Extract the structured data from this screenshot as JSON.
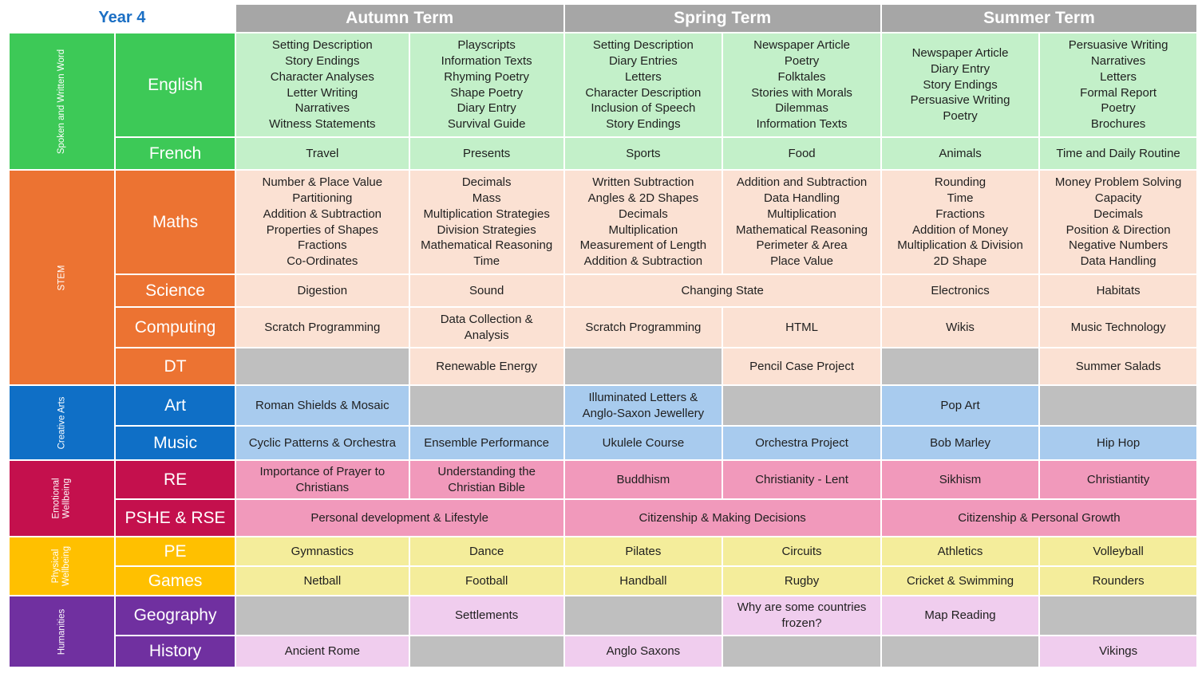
{
  "header": {
    "year": "Year 4",
    "terms": [
      "Autumn Term",
      "Spring Term",
      "Summer Term"
    ]
  },
  "groups": [
    {
      "label": "Spoken and Written Word",
      "label_lines": [
        "Spoken and Written Word"
      ],
      "color": "#3dc957",
      "cell_color": "#c3f0c9",
      "subjects": [
        {
          "name": "English",
          "cells": [
            {
              "lines": [
                "Setting Description",
                "Story Endings",
                "Character Analyses",
                "Letter Writing",
                "Narratives",
                "Witness Statements"
              ]
            },
            {
              "lines": [
                "Playscripts",
                "Information Texts",
                "Rhyming Poetry",
                "Shape Poetry",
                "Diary Entry",
                "Survival Guide"
              ]
            },
            {
              "lines": [
                "Setting Description",
                "Diary Entries",
                "Letters",
                "Character Description",
                "Inclusion of Speech",
                "Story Endings"
              ]
            },
            {
              "lines": [
                "Newspaper Article",
                "Poetry",
                "Folktales",
                "Stories with Morals",
                "Dilemmas",
                "Information Texts"
              ]
            },
            {
              "lines": [
                "Newspaper Article",
                "Diary Entry",
                "Story Endings",
                "Persuasive Writing",
                "Poetry"
              ]
            },
            {
              "lines": [
                "Persuasive Writing",
                "Narratives",
                "Letters",
                "Formal Report",
                "Poetry",
                "Brochures"
              ]
            }
          ]
        },
        {
          "name": "French",
          "cells": [
            {
              "lines": [
                "Travel"
              ]
            },
            {
              "lines": [
                "Presents"
              ]
            },
            {
              "lines": [
                "Sports"
              ]
            },
            {
              "lines": [
                "Food"
              ]
            },
            {
              "lines": [
                "Animals"
              ]
            },
            {
              "lines": [
                "Time and Daily Routine"
              ]
            }
          ]
        }
      ]
    },
    {
      "label": "STEM",
      "label_lines": [
        "STEM"
      ],
      "color": "#ec7332",
      "cell_color": "#fbe1d3",
      "subjects": [
        {
          "name": "Maths",
          "cells": [
            {
              "lines": [
                "Number & Place Value",
                "Partitioning",
                "Addition & Subtraction",
                "Properties of Shapes",
                "Fractions",
                "Co-Ordinates"
              ]
            },
            {
              "lines": [
                "Decimals",
                "Mass",
                "Multiplication Strategies",
                "Division Strategies",
                "Mathematical Reasoning",
                "Time"
              ]
            },
            {
              "lines": [
                "Written Subtraction",
                "Angles & 2D Shapes",
                "Decimals",
                "Multiplication",
                "Measurement of Length",
                "Addition & Subtraction"
              ]
            },
            {
              "lines": [
                "Addition and Subtraction",
                "Data Handling",
                "Multiplication",
                "Mathematical Reasoning",
                "Perimeter & Area",
                "Place Value"
              ]
            },
            {
              "lines": [
                "Rounding",
                "Time",
                "Fractions",
                "Addition of Money",
                "Multiplication & Division",
                "2D Shape"
              ]
            },
            {
              "lines": [
                "Money Problem Solving",
                "Capacity",
                "Decimals",
                "Position & Direction",
                "Negative Numbers",
                "Data Handling"
              ]
            }
          ]
        },
        {
          "name": "Science",
          "cells": [
            {
              "lines": [
                "Digestion"
              ]
            },
            {
              "lines": [
                "Sound"
              ]
            },
            {
              "lines": [
                "Changing State"
              ],
              "span": 2
            },
            {
              "lines": [
                "Electronics"
              ]
            },
            {
              "lines": [
                "Habitats"
              ]
            }
          ]
        },
        {
          "name": "Computing",
          "cells": [
            {
              "lines": [
                "Scratch Programming"
              ]
            },
            {
              "lines": [
                "Data Collection &",
                "Analysis"
              ]
            },
            {
              "lines": [
                "Scratch Programming"
              ]
            },
            {
              "lines": [
                "HTML"
              ]
            },
            {
              "lines": [
                "Wikis"
              ]
            },
            {
              "lines": [
                "Music Technology"
              ]
            }
          ]
        },
        {
          "name": "DT",
          "cells": [
            {
              "lines": [],
              "empty": true
            },
            {
              "lines": [
                "Renewable Energy"
              ]
            },
            {
              "lines": [],
              "empty": true
            },
            {
              "lines": [
                "Pencil Case Project"
              ]
            },
            {
              "lines": [],
              "empty": true
            },
            {
              "lines": [
                "Summer Salads"
              ]
            }
          ]
        }
      ]
    },
    {
      "label": "Creative Arts",
      "label_lines": [
        "Creative Arts"
      ],
      "color": "#0f6fc6",
      "cell_color": "#a8cbee",
      "subjects": [
        {
          "name": "Art",
          "cells": [
            {
              "lines": [
                "Roman Shields & Mosaic"
              ]
            },
            {
              "lines": [],
              "empty": true
            },
            {
              "lines": [
                "Illuminated Letters &",
                "Anglo-Saxon Jewellery"
              ]
            },
            {
              "lines": [],
              "empty": true
            },
            {
              "lines": [
                "Pop Art"
              ]
            },
            {
              "lines": [],
              "empty": true
            }
          ]
        },
        {
          "name": "Music",
          "cells": [
            {
              "lines": [
                "Cyclic Patterns & Orchestra"
              ]
            },
            {
              "lines": [
                "Ensemble Performance"
              ]
            },
            {
              "lines": [
                "Ukulele Course"
              ]
            },
            {
              "lines": [
                "Orchestra Project"
              ]
            },
            {
              "lines": [
                "Bob Marley"
              ]
            },
            {
              "lines": [
                "Hip Hop"
              ]
            }
          ]
        }
      ]
    },
    {
      "label": "Emotional Wellbeing",
      "label_lines": [
        "Emotional",
        "Wellbeing"
      ],
      "color": "#c4104d",
      "cell_color": "#f199bb",
      "subjects": [
        {
          "name": "RE",
          "cells": [
            {
              "lines": [
                "Importance of Prayer to",
                "Christians"
              ]
            },
            {
              "lines": [
                "Understanding the",
                "Christian Bible"
              ]
            },
            {
              "lines": [
                "Buddhism"
              ]
            },
            {
              "lines": [
                "Christianity - Lent"
              ]
            },
            {
              "lines": [
                "Sikhism"
              ]
            },
            {
              "lines": [
                "Christiantity"
              ]
            }
          ]
        },
        {
          "name": "PSHE & RSE",
          "cells": [
            {
              "lines": [
                "Personal development & Lifestyle"
              ],
              "span": 2
            },
            {
              "lines": [
                "Citizenship & Making Decisions"
              ],
              "span": 2
            },
            {
              "lines": [
                "Citizenship & Personal Growth"
              ],
              "span": 2
            }
          ]
        }
      ]
    },
    {
      "label": "Physical Wellbeing",
      "label_lines": [
        "Physical",
        "Wellbeing"
      ],
      "color": "#ffc000",
      "cell_color": "#f4ed9b",
      "subjects": [
        {
          "name": "PE",
          "cells": [
            {
              "lines": [
                "Gymnastics"
              ]
            },
            {
              "lines": [
                "Dance"
              ]
            },
            {
              "lines": [
                "Pilates"
              ]
            },
            {
              "lines": [
                "Circuits"
              ]
            },
            {
              "lines": [
                "Athletics"
              ]
            },
            {
              "lines": [
                "Volleyball"
              ]
            }
          ]
        },
        {
          "name": "Games",
          "cells": [
            {
              "lines": [
                "Netball"
              ]
            },
            {
              "lines": [
                "Football"
              ]
            },
            {
              "lines": [
                "Handball"
              ]
            },
            {
              "lines": [
                "Rugby"
              ]
            },
            {
              "lines": [
                "Cricket & Swimming"
              ]
            },
            {
              "lines": [
                "Rounders"
              ]
            }
          ]
        }
      ]
    },
    {
      "label": "Humanities",
      "label_lines": [
        "Humanities"
      ],
      "color": "#7030a0",
      "cell_color": "#f0cdee",
      "subjects": [
        {
          "name": "Geography",
          "cells": [
            {
              "lines": [],
              "empty": true
            },
            {
              "lines": [
                "Settlements"
              ]
            },
            {
              "lines": [],
              "empty": true
            },
            {
              "lines": [
                "Why are some countries",
                "frozen?"
              ]
            },
            {
              "lines": [
                "Map Reading"
              ]
            },
            {
              "lines": [],
              "empty": true
            }
          ]
        },
        {
          "name": "History",
          "cells": [
            {
              "lines": [
                "Ancient Rome"
              ]
            },
            {
              "lines": [],
              "empty": true
            },
            {
              "lines": [
                "Anglo Saxons"
              ]
            },
            {
              "lines": [],
              "empty": true
            },
            {
              "lines": [],
              "empty": true
            },
            {
              "lines": [
                "Vikings"
              ]
            }
          ]
        }
      ]
    }
  ]
}
